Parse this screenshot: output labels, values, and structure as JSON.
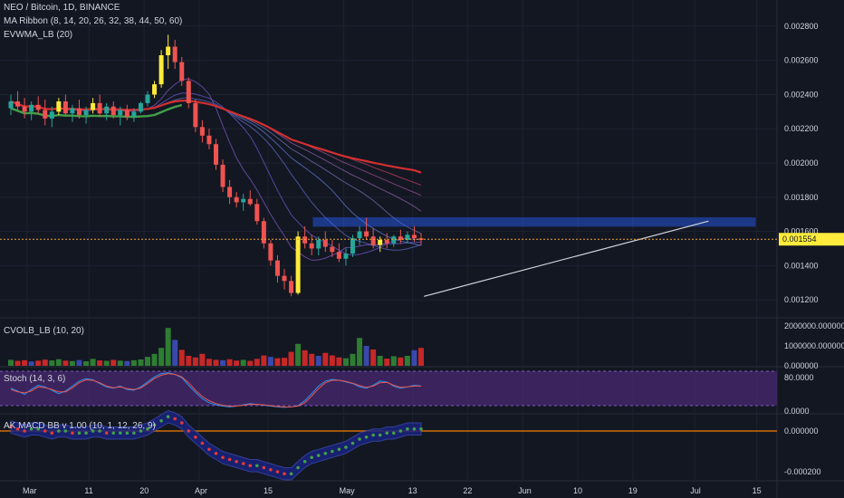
{
  "header": {
    "symbol_line": "NEO / Bitcoin, 1D, BINANCE",
    "ma_ribbon": "MA Ribbon (8, 14, 20, 26, 32, 38, 44, 50, 60)",
    "evwma": "EVWMA_LB (20)"
  },
  "panes": {
    "cvolb": "CVOLB_LB (10, 20)",
    "stoch": "Stoch (14, 3, 6)",
    "macd": "AK MACD BB v 1.00 (10, 1, 12, 26, 9)"
  },
  "colors": {
    "background": "#131722",
    "up": "#26a69a",
    "down": "#ef5350",
    "yellow": "#ffeb3b",
    "zone": "#2962ff",
    "red_ma": "#e53935",
    "green_ma": "#43a047",
    "stoch_bg": "#4a2a72"
  },
  "chart_data": [
    {
      "type": "candlestick",
      "title": "NEO / Bitcoin, 1D, BINANCE",
      "x_tick_labels": [
        "Mar",
        "11",
        "20",
        "Apr",
        "15",
        "May",
        "13",
        "22",
        "Jun",
        "10",
        "19",
        "Jul",
        "15"
      ],
      "y_tick_labels": [
        "0.001200",
        "0.001400",
        "0.001600",
        "0.001800",
        "0.002000",
        "0.002200",
        "0.002400",
        "0.002600",
        "0.002800"
      ],
      "ylim": [
        0.0011,
        0.0029
      ],
      "current_price_label": "0.001554",
      "current_price": 0.001554,
      "resistance_zone": [
        0.00163,
        0.00168
      ],
      "trendline": [
        [
          13,
          0.00122
        ],
        [
          57,
          0.00166
        ]
      ],
      "candles": [
        {
          "o": 0.00232,
          "h": 0.0024,
          "l": 0.00228,
          "c": 0.00236
        },
        {
          "o": 0.00236,
          "h": 0.00242,
          "l": 0.00231,
          "c": 0.00233
        },
        {
          "o": 0.00233,
          "h": 0.00238,
          "l": 0.00226,
          "c": 0.0023
        },
        {
          "o": 0.0023,
          "h": 0.00236,
          "l": 0.00225,
          "c": 0.00234
        },
        {
          "o": 0.00234,
          "h": 0.00239,
          "l": 0.00229,
          "c": 0.00231
        },
        {
          "o": 0.00231,
          "h": 0.00237,
          "l": 0.00222,
          "c": 0.00226
        },
        {
          "o": 0.00226,
          "h": 0.00233,
          "l": 0.00221,
          "c": 0.0023
        },
        {
          "o": 0.0023,
          "h": 0.00238,
          "l": 0.00228,
          "c": 0.00236
        },
        {
          "o": 0.00236,
          "h": 0.0024,
          "l": 0.00228,
          "c": 0.00229
        },
        {
          "o": 0.00229,
          "h": 0.00234,
          "l": 0.00224,
          "c": 0.00232
        },
        {
          "o": 0.00232,
          "h": 0.00237,
          "l": 0.00226,
          "c": 0.00228
        },
        {
          "o": 0.00228,
          "h": 0.00233,
          "l": 0.00223,
          "c": 0.00231
        },
        {
          "o": 0.00231,
          "h": 0.00238,
          "l": 0.00229,
          "c": 0.00235
        },
        {
          "o": 0.00235,
          "h": 0.0024,
          "l": 0.00227,
          "c": 0.00229
        },
        {
          "o": 0.00229,
          "h": 0.00235,
          "l": 0.00225,
          "c": 0.00233
        },
        {
          "o": 0.00233,
          "h": 0.00236,
          "l": 0.00226,
          "c": 0.00228
        },
        {
          "o": 0.00228,
          "h": 0.00233,
          "l": 0.00222,
          "c": 0.00231
        },
        {
          "o": 0.00231,
          "h": 0.00234,
          "l": 0.00225,
          "c": 0.00227
        },
        {
          "o": 0.00227,
          "h": 0.00232,
          "l": 0.00224,
          "c": 0.0023
        },
        {
          "o": 0.0023,
          "h": 0.00236,
          "l": 0.00229,
          "c": 0.00235
        },
        {
          "o": 0.00235,
          "h": 0.00242,
          "l": 0.00233,
          "c": 0.0024
        },
        {
          "o": 0.0024,
          "h": 0.00248,
          "l": 0.00238,
          "c": 0.00246
        },
        {
          "o": 0.00246,
          "h": 0.00266,
          "l": 0.00244,
          "c": 0.00263
        },
        {
          "o": 0.00263,
          "h": 0.00275,
          "l": 0.00255,
          "c": 0.00268
        },
        {
          "o": 0.00268,
          "h": 0.00272,
          "l": 0.00255,
          "c": 0.00259
        },
        {
          "o": 0.00259,
          "h": 0.00262,
          "l": 0.00245,
          "c": 0.00248
        },
        {
          "o": 0.00248,
          "h": 0.0025,
          "l": 0.00232,
          "c": 0.00235
        },
        {
          "o": 0.00235,
          "h": 0.00237,
          "l": 0.00218,
          "c": 0.00221
        },
        {
          "o": 0.00221,
          "h": 0.00225,
          "l": 0.00212,
          "c": 0.00216
        },
        {
          "o": 0.00216,
          "h": 0.0022,
          "l": 0.00208,
          "c": 0.00211
        },
        {
          "o": 0.00211,
          "h": 0.00214,
          "l": 0.00196,
          "c": 0.00199
        },
        {
          "o": 0.00199,
          "h": 0.00202,
          "l": 0.00183,
          "c": 0.00186
        },
        {
          "o": 0.00186,
          "h": 0.0019,
          "l": 0.00176,
          "c": 0.0018
        },
        {
          "o": 0.0018,
          "h": 0.00183,
          "l": 0.00174,
          "c": 0.00177
        },
        {
          "o": 0.00177,
          "h": 0.00182,
          "l": 0.00172,
          "c": 0.00179
        },
        {
          "o": 0.00179,
          "h": 0.00184,
          "l": 0.00175,
          "c": 0.00176
        },
        {
          "o": 0.00176,
          "h": 0.00179,
          "l": 0.00164,
          "c": 0.00166
        },
        {
          "o": 0.00166,
          "h": 0.00168,
          "l": 0.0015,
          "c": 0.00153
        },
        {
          "o": 0.00153,
          "h": 0.00155,
          "l": 0.0014,
          "c": 0.00143
        },
        {
          "o": 0.00143,
          "h": 0.00146,
          "l": 0.0013,
          "c": 0.00134
        },
        {
          "o": 0.00134,
          "h": 0.00138,
          "l": 0.00126,
          "c": 0.00131
        },
        {
          "o": 0.00131,
          "h": 0.00134,
          "l": 0.00122,
          "c": 0.00124
        },
        {
          "o": 0.00124,
          "h": 0.0016,
          "l": 0.00123,
          "c": 0.00157
        },
        {
          "o": 0.00157,
          "h": 0.00163,
          "l": 0.0015,
          "c": 0.00153
        },
        {
          "o": 0.00153,
          "h": 0.00158,
          "l": 0.00146,
          "c": 0.0015
        },
        {
          "o": 0.0015,
          "h": 0.00157,
          "l": 0.00146,
          "c": 0.00155
        },
        {
          "o": 0.00155,
          "h": 0.0016,
          "l": 0.00148,
          "c": 0.00151
        },
        {
          "o": 0.00151,
          "h": 0.00155,
          "l": 0.00145,
          "c": 0.00148
        },
        {
          "o": 0.00148,
          "h": 0.00153,
          "l": 0.00142,
          "c": 0.00144
        },
        {
          "o": 0.00144,
          "h": 0.0015,
          "l": 0.0014,
          "c": 0.00147
        },
        {
          "o": 0.00147,
          "h": 0.00158,
          "l": 0.00145,
          "c": 0.00156
        },
        {
          "o": 0.00156,
          "h": 0.00163,
          "l": 0.00152,
          "c": 0.0016
        },
        {
          "o": 0.0016,
          "h": 0.00168,
          "l": 0.00155,
          "c": 0.00157
        },
        {
          "o": 0.00157,
          "h": 0.00162,
          "l": 0.0015,
          "c": 0.00152
        },
        {
          "o": 0.00152,
          "h": 0.00157,
          "l": 0.00148,
          "c": 0.00155
        },
        {
          "o": 0.00155,
          "h": 0.00159,
          "l": 0.0015,
          "c": 0.00153
        },
        {
          "o": 0.00153,
          "h": 0.00158,
          "l": 0.00151,
          "c": 0.00157
        },
        {
          "o": 0.00157,
          "h": 0.00161,
          "l": 0.00153,
          "c": 0.00155
        },
        {
          "o": 0.00155,
          "h": 0.0016,
          "l": 0.00153,
          "c": 0.00158
        },
        {
          "o": 0.00158,
          "h": 0.00163,
          "l": 0.00154,
          "c": 0.00156
        },
        {
          "o": 0.00156,
          "h": 0.00159,
          "l": 0.00152,
          "c": 0.00155
        }
      ]
    },
    {
      "type": "bar",
      "title": "CVOLB_LB (10, 20)",
      "y_tick_labels": [
        "0.000000",
        "1000000.000000",
        "2000000.000000"
      ],
      "ylim": [
        0,
        2000000
      ],
      "values": [
        300000,
        250000,
        280000,
        220000,
        260000,
        310000,
        270000,
        330000,
        260000,
        240000,
        290000,
        230000,
        350000,
        270000,
        250000,
        300000,
        260000,
        240000,
        280000,
        320000,
        450000,
        600000,
        900000,
        1900000,
        1300000,
        800000,
        500000,
        420000,
        600000,
        350000,
        300000,
        280000,
        330000,
        260000,
        300000,
        250000,
        350000,
        520000,
        450000,
        380000,
        400000,
        700000,
        1100000,
        780000,
        600000,
        500000,
        650000,
        520000,
        420000,
        380000,
        600000,
        1400000,
        1000000,
        820000,
        500000,
        360000,
        480000,
        420000,
        500000,
        780000,
        900000
      ],
      "colors_by_index": "green=up, red=down, blue=neutral"
    },
    {
      "type": "line",
      "title": "Stoch (14, 3, 6)",
      "y_tick_labels": [
        "0.0000",
        "80.0000"
      ],
      "ylim": [
        0,
        100
      ],
      "series": [
        {
          "values": [
            55,
            48,
            40,
            52,
            62,
            58,
            50,
            42,
            48,
            60,
            72,
            78,
            75,
            66,
            58,
            55,
            60,
            52,
            50,
            58,
            70,
            82,
            90,
            92,
            88,
            80,
            62,
            45,
            30,
            20,
            15,
            12,
            10,
            12,
            15,
            18,
            16,
            14,
            12,
            10,
            9,
            10,
            13,
            25,
            42,
            60,
            72,
            76,
            74,
            70,
            66,
            58,
            55,
            62,
            72,
            70,
            60,
            55,
            58,
            62,
            60
          ]
        },
        {
          "values": [
            52,
            46,
            44,
            48,
            58,
            56,
            52,
            46,
            46,
            56,
            68,
            75,
            74,
            68,
            60,
            56,
            58,
            54,
            52,
            55,
            66,
            78,
            86,
            90,
            88,
            82,
            68,
            50,
            35,
            25,
            18,
            14,
            12,
            12,
            14,
            16,
            16,
            15,
            13,
            11,
            10,
            10,
            12,
            20,
            36,
            54,
            68,
            74,
            74,
            71,
            67,
            61,
            57,
            60,
            68,
            69,
            62,
            57,
            58,
            60,
            60
          ]
        }
      ]
    },
    {
      "type": "area",
      "title": "AK MACD BB v 1.00 (10, 1, 12, 26, 9)",
      "y_tick_labels": [
        "0.000000",
        "-0.000200"
      ],
      "ylim": [
        -0.00024,
        8e-05
      ],
      "series": [
        {
          "values": [
            2e-05,
            1e-05,
            0.0,
            1e-05,
            1e-05,
            0.0,
            -1e-05,
            0.0,
            0.0,
            -1e-05,
            -1e-05,
            -1e-05,
            0.0,
            0.0,
            -1e-05,
            -1e-05,
            -1e-05,
            -1e-05,
            -1e-05,
            0.0,
            1e-05,
            3e-05,
            5e-05,
            7e-05,
            6e-05,
            4e-05,
            0.0,
            -3e-05,
            -6e-05,
            -9e-05,
            -0.00011,
            -0.00013,
            -0.00014,
            -0.00015,
            -0.00016,
            -0.00017,
            -0.00017,
            -0.00018,
            -0.00019,
            -0.0002,
            -0.00021,
            -0.00021,
            -0.00018,
            -0.00015,
            -0.00013,
            -0.00012,
            -0.00011,
            -0.0001,
            -9e-05,
            -8e-05,
            -6e-05,
            -4e-05,
            -3e-05,
            -2e-05,
            -2e-05,
            -1e-05,
            -1e-05,
            0.0,
            1e-05,
            1e-05,
            1e-05
          ]
        }
      ]
    }
  ]
}
